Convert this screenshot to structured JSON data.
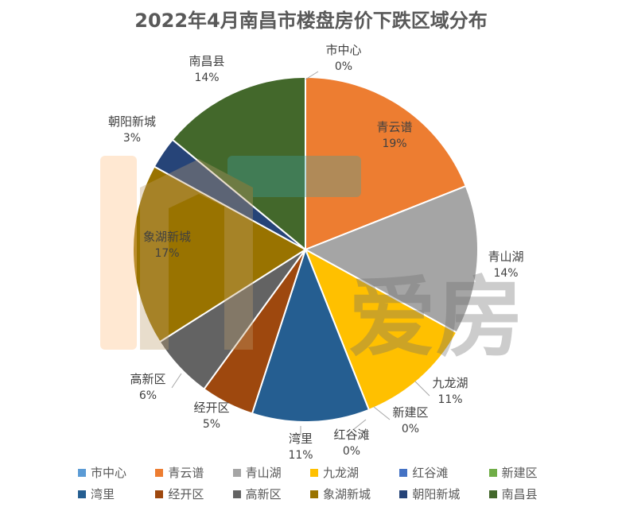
{
  "chart_data": {
    "type": "pie",
    "title": "2022年4月南昌市楼盘房价下跌区域分布",
    "slices": [
      {
        "name": "市中心",
        "value": 0,
        "label": "0%",
        "color": "#5B9BD5"
      },
      {
        "name": "青云谱",
        "value": 19,
        "label": "19%",
        "color": "#ED7D31"
      },
      {
        "name": "青山湖",
        "value": 14,
        "label": "14%",
        "color": "#A5A5A5"
      },
      {
        "name": "九龙湖",
        "value": 11,
        "label": "11%",
        "color": "#FFC000"
      },
      {
        "name": "红谷滩",
        "value": 0,
        "label": "0%",
        "color": "#4472C4"
      },
      {
        "name": "新建区",
        "value": 0,
        "label": "0%",
        "color": "#70AD47"
      },
      {
        "name": "湾里",
        "value": 11,
        "label": "11%",
        "color": "#255E91"
      },
      {
        "name": "经开区",
        "value": 5,
        "label": "5%",
        "color": "#9E480E"
      },
      {
        "name": "高新区",
        "value": 6,
        "label": "6%",
        "color": "#636363"
      },
      {
        "name": "象湖新城",
        "value": 17,
        "label": "17%",
        "color": "#997300"
      },
      {
        "name": "朝阳新城",
        "value": 3,
        "label": "3%",
        "color": "#264478"
      },
      {
        "name": "南昌县",
        "value": 14,
        "label": "14%",
        "color": "#43682B"
      }
    ],
    "legend_position": "bottom"
  },
  "watermark": {
    "text": "爱房"
  }
}
